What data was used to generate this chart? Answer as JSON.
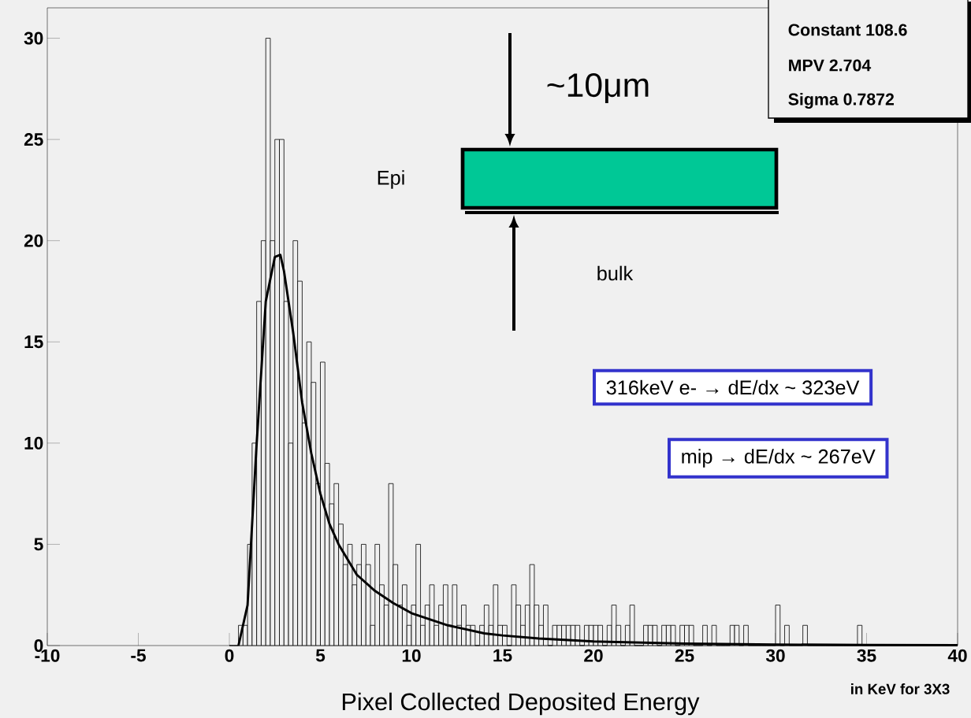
{
  "chart_data": {
    "type": "histogram",
    "xlabel": "Pixel Collected Deposited Energy",
    "color": "#000000",
    "bins": [
      0,
      0.25,
      0.5,
      0.75,
      1,
      1.25,
      1.5,
      1.75,
      2,
      2.25,
      2.5,
      2.75,
      3,
      3.25,
      3.5,
      3.75,
      4,
      4.25,
      4.5,
      4.75,
      5,
      5.25,
      5.5,
      5.75,
      6,
      6.25,
      6.5,
      6.75,
      7,
      7.25,
      7.5,
      7.75,
      8,
      8.25,
      8.5,
      8.75,
      9,
      9.25,
      9.5,
      9.75,
      10,
      10.25,
      10.5,
      10.75,
      11,
      11.25,
      11.5,
      11.75,
      12,
      12.25,
      12.5,
      12.75,
      13,
      13.25,
      13.5,
      13.75,
      14,
      14.25,
      14.5,
      14.75,
      15,
      15.25,
      15.5,
      15.75,
      16,
      16.25,
      16.5,
      16.75,
      17,
      17.25,
      17.5,
      17.75,
      18,
      18.25,
      18.5,
      18.75,
      19,
      19.25,
      19.5,
      19.75,
      20,
      20.25,
      20.5,
      20.75,
      21,
      21.25,
      21.5,
      21.75,
      22,
      22.25,
      22.5,
      22.75,
      23,
      23.25,
      23.5,
      23.75,
      24,
      24.25,
      24.5,
      24.75,
      25,
      25.25,
      25.5,
      25.75,
      26,
      26.25,
      26.5,
      26.75,
      27,
      27.25,
      27.5,
      27.75,
      28,
      28.25,
      28.5,
      28.75,
      29,
      29.25,
      29.5,
      29.75,
      30,
      30.25,
      30.5,
      30.75,
      31,
      31.25,
      31.5,
      31.75,
      32,
      32.25,
      32.5,
      32.75,
      33,
      33.25,
      33.5,
      33.75,
      34,
      34.25,
      34.5,
      34.75,
      35,
      35.25,
      35.5,
      35.75,
      36,
      36.25,
      36.5,
      36.75,
      37,
      37.25,
      37.5,
      37.75,
      38,
      38.25,
      38.5,
      38.75,
      39,
      39.25,
      39.5,
      39.75,
      40
    ],
    "values": [
      0,
      0,
      1,
      1,
      5,
      10,
      17,
      20,
      30,
      20,
      25,
      25,
      17,
      10,
      20,
      18,
      11,
      15,
      13,
      8,
      14,
      9,
      7,
      8,
      6,
      4,
      5,
      3,
      4,
      5,
      4,
      1,
      5,
      3,
      2,
      8,
      4,
      2,
      3,
      1,
      2,
      5,
      1,
      2,
      3,
      1,
      2,
      3,
      1,
      3,
      1,
      2,
      1,
      1,
      0,
      1,
      2,
      1,
      3,
      1,
      1,
      0,
      3,
      2,
      1,
      2,
      4,
      2,
      1,
      2,
      0,
      1,
      1,
      1,
      1,
      1,
      1,
      0,
      1,
      1,
      1,
      1,
      0,
      1,
      2,
      1,
      0,
      1,
      2,
      0,
      0,
      1,
      1,
      1,
      0,
      1,
      1,
      1,
      0,
      1,
      1,
      1,
      0,
      0,
      1,
      0,
      1,
      0,
      0,
      0,
      1,
      1,
      0,
      1,
      0,
      0,
      0,
      0,
      0,
      0,
      2,
      0,
      1,
      0,
      0,
      0,
      1,
      0,
      0,
      0,
      0,
      0,
      0,
      0,
      0,
      0,
      0,
      0,
      1,
      0,
      0,
      0,
      0,
      0,
      0,
      0,
      0,
      0,
      0,
      0,
      0,
      0,
      0,
      0,
      0,
      0,
      0,
      0,
      0,
      0
    ],
    "series": [
      {
        "type": "line",
        "color": "#000000",
        "x": [
          0.5,
          1,
          1.5,
          2,
          2.5,
          2.8,
          3,
          3.5,
          4,
          4.5,
          5,
          5.5,
          6,
          7,
          8,
          9,
          10,
          11,
          12,
          13,
          14,
          15,
          17,
          20,
          25,
          30,
          35,
          40
        ],
        "values": [
          0,
          2,
          10,
          17,
          19.2,
          19.3,
          18.5,
          15.5,
          12,
          9.5,
          7.5,
          6,
          5,
          3.5,
          2.7,
          2.1,
          1.6,
          1.3,
          1,
          0.8,
          0.6,
          0.5,
          0.35,
          0.2,
          0.1,
          0.05,
          0.03,
          0.02
        ]
      }
    ],
    "xlim": [
      -10,
      40
    ],
    "ylim": [
      0,
      31.5
    ],
    "xticks": [
      -10,
      -5,
      0,
      5,
      10,
      15,
      20,
      25,
      30,
      35,
      40
    ],
    "yticks": [
      0,
      5,
      10,
      15,
      20,
      25,
      30
    ],
    "annotations": [
      "Constant 108.6",
      "MPV 2.704",
      "Sigma 0.7872",
      "~10μm",
      "Epi",
      "bulk",
      "316keV e- → dE/dx ~ 323eV",
      "mip → dE/dx ~ 267eV",
      "in KeV for 3X3"
    ]
  }
}
